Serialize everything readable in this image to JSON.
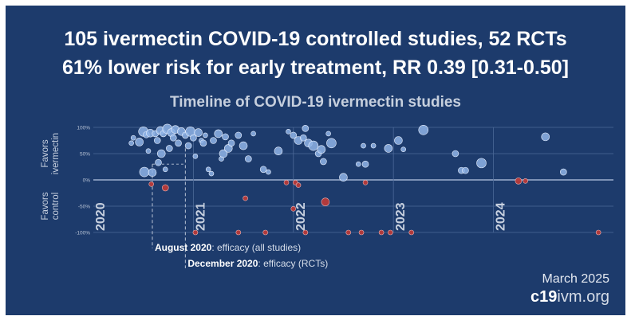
{
  "header": {
    "line1": "105 ivermectin COVID-19 controlled studies, 52 RCTs",
    "line2": "61% lower risk for early treatment, RR 0.39 [0.31-0.50]"
  },
  "footer": {
    "date": "March 2025",
    "site_bold": "c19",
    "site_rest": "ivm.org"
  },
  "chart_data": {
    "type": "scatter",
    "title": "Timeline of COVID-19 ivermectin studies",
    "ylabel_top": [
      "Favors",
      "ivermectin"
    ],
    "ylabel_bottom": [
      "Favors",
      "control"
    ],
    "ylim": [
      -100,
      100
    ],
    "y_ticks": [
      "100%",
      "50%",
      "0%",
      "-50%",
      "-100%"
    ],
    "xlim": [
      2020.0,
      2025.2
    ],
    "year_labels": [
      "2020",
      "2021",
      "2022",
      "2023",
      "2024"
    ],
    "annotations": [
      {
        "bold": "August 2020",
        "text": ": efficacy (all studies)",
        "x": 2020.59
      },
      {
        "bold": "December 2020",
        "text": ": efficacy (RCTs)",
        "x": 2020.92
      }
    ],
    "colors": {
      "favorable": "#8fb4e6",
      "unfavorable": "#b83a3a",
      "grid": "#4d6a98",
      "zero_line": "#9db0cf"
    },
    "series": [
      {
        "points": [
          {
            "x": 2020.38,
            "y": 70,
            "r": 3
          },
          {
            "x": 2020.4,
            "y": 80,
            "r": 3
          },
          {
            "x": 2020.46,
            "y": 72,
            "r": 5
          },
          {
            "x": 2020.5,
            "y": 92,
            "r": 6
          },
          {
            "x": 2020.53,
            "y": 86,
            "r": 4
          },
          {
            "x": 2020.55,
            "y": 55,
            "r": 3
          },
          {
            "x": 2020.51,
            "y": 15,
            "r": 6
          },
          {
            "x": 2020.57,
            "y": 89,
            "r": 5
          },
          {
            "x": 2020.59,
            "y": 14,
            "r": 5
          },
          {
            "x": 2020.62,
            "y": 88,
            "r": 4
          },
          {
            "x": 2020.64,
            "y": 75,
            "r": 4
          },
          {
            "x": 2020.65,
            "y": 33,
            "r": 4
          },
          {
            "x": 2020.67,
            "y": 94,
            "r": 5
          },
          {
            "x": 2020.68,
            "y": 50,
            "r": 5
          },
          {
            "x": 2020.7,
            "y": 88,
            "r": 4
          },
          {
            "x": 2020.72,
            "y": 20,
            "r": 3
          },
          {
            "x": 2020.74,
            "y": 97,
            "r": 6
          },
          {
            "x": 2020.76,
            "y": 60,
            "r": 4
          },
          {
            "x": 2020.78,
            "y": 90,
            "r": 5
          },
          {
            "x": 2020.8,
            "y": 80,
            "r": 4
          },
          {
            "x": 2020.82,
            "y": 96,
            "r": 5
          },
          {
            "x": 2020.85,
            "y": 70,
            "r": 4
          },
          {
            "x": 2020.88,
            "y": 92,
            "r": 5
          },
          {
            "x": 2020.92,
            "y": 85,
            "r": 4
          },
          {
            "x": 2020.95,
            "y": 65,
            "r": 4
          },
          {
            "x": 2020.97,
            "y": 92,
            "r": 6
          },
          {
            "x": 2021.0,
            "y": 80,
            "r": 4
          },
          {
            "x": 2021.02,
            "y": 45,
            "r": 3
          },
          {
            "x": 2021.05,
            "y": 90,
            "r": 5
          },
          {
            "x": 2021.08,
            "y": 75,
            "r": 3
          },
          {
            "x": 2021.1,
            "y": 70,
            "r": 4
          },
          {
            "x": 2021.12,
            "y": 85,
            "r": 3
          },
          {
            "x": 2021.15,
            "y": 20,
            "r": 3
          },
          {
            "x": 2021.18,
            "y": 12,
            "r": 3
          },
          {
            "x": 2021.2,
            "y": 75,
            "r": 4
          },
          {
            "x": 2021.25,
            "y": 88,
            "r": 5
          },
          {
            "x": 2021.28,
            "y": 40,
            "r": 3
          },
          {
            "x": 2021.3,
            "y": 50,
            "r": 5
          },
          {
            "x": 2021.32,
            "y": 82,
            "r": 4
          },
          {
            "x": 2021.35,
            "y": 60,
            "r": 5
          },
          {
            "x": 2021.38,
            "y": 70,
            "r": 4
          },
          {
            "x": 2021.45,
            "y": 85,
            "r": 4
          },
          {
            "x": 2021.5,
            "y": 65,
            "r": 5
          },
          {
            "x": 2021.55,
            "y": 40,
            "r": 4
          },
          {
            "x": 2021.6,
            "y": 88,
            "r": 3
          },
          {
            "x": 2021.7,
            "y": 20,
            "r": 4
          },
          {
            "x": 2021.75,
            "y": 15,
            "r": 3
          },
          {
            "x": 2021.85,
            "y": 55,
            "r": 5
          },
          {
            "x": 2021.95,
            "y": 92,
            "r": 3
          },
          {
            "x": 2022.0,
            "y": 85,
            "r": 4
          },
          {
            "x": 2022.05,
            "y": 75,
            "r": 5
          },
          {
            "x": 2022.1,
            "y": 80,
            "r": 4
          },
          {
            "x": 2022.12,
            "y": 98,
            "r": 4
          },
          {
            "x": 2022.15,
            "y": 70,
            "r": 5
          },
          {
            "x": 2022.2,
            "y": 65,
            "r": 6
          },
          {
            "x": 2022.25,
            "y": 50,
            "r": 4
          },
          {
            "x": 2022.28,
            "y": 58,
            "r": 5
          },
          {
            "x": 2022.3,
            "y": 35,
            "r": 4
          },
          {
            "x": 2022.35,
            "y": 88,
            "r": 3
          },
          {
            "x": 2022.38,
            "y": 70,
            "r": 6
          },
          {
            "x": 2022.5,
            "y": 5,
            "r": 5
          },
          {
            "x": 2022.65,
            "y": 30,
            "r": 3
          },
          {
            "x": 2022.7,
            "y": 65,
            "r": 3
          },
          {
            "x": 2022.72,
            "y": 30,
            "r": 4
          },
          {
            "x": 2022.8,
            "y": 65,
            "r": 3
          },
          {
            "x": 2022.95,
            "y": 60,
            "r": 5
          },
          {
            "x": 2023.05,
            "y": 75,
            "r": 5
          },
          {
            "x": 2023.1,
            "y": 58,
            "r": 3
          },
          {
            "x": 2023.3,
            "y": 95,
            "r": 6
          },
          {
            "x": 2023.62,
            "y": 50,
            "r": 4
          },
          {
            "x": 2023.68,
            "y": 18,
            "r": 4
          },
          {
            "x": 2023.72,
            "y": 18,
            "r": 4
          },
          {
            "x": 2023.88,
            "y": 32,
            "r": 6
          },
          {
            "x": 2024.52,
            "y": 82,
            "r": 5
          },
          {
            "x": 2024.7,
            "y": 15,
            "r": 4
          }
        ]
      },
      {
        "points": [
          {
            "x": 2020.58,
            "y": -8,
            "r": 3
          },
          {
            "x": 2020.72,
            "y": -15,
            "r": 4
          },
          {
            "x": 2021.02,
            "y": -100,
            "r": 3
          },
          {
            "x": 2021.45,
            "y": -100,
            "r": 3
          },
          {
            "x": 2021.52,
            "y": -35,
            "r": 3
          },
          {
            "x": 2021.72,
            "y": -100,
            "r": 3
          },
          {
            "x": 2021.93,
            "y": -5,
            "r": 3
          },
          {
            "x": 2022.02,
            "y": -5,
            "r": 3
          },
          {
            "x": 2022.0,
            "y": -55,
            "r": 3
          },
          {
            "x": 2022.05,
            "y": -10,
            "r": 3
          },
          {
            "x": 2022.12,
            "y": -100,
            "r": 3
          },
          {
            "x": 2022.32,
            "y": -42,
            "r": 5
          },
          {
            "x": 2022.55,
            "y": -100,
            "r": 3
          },
          {
            "x": 2022.68,
            "y": -100,
            "r": 3
          },
          {
            "x": 2022.72,
            "y": -5,
            "r": 3
          },
          {
            "x": 2022.88,
            "y": -100,
            "r": 3
          },
          {
            "x": 2022.97,
            "y": -100,
            "r": 3
          },
          {
            "x": 2023.18,
            "y": -100,
            "r": 3
          },
          {
            "x": 2024.25,
            "y": -2,
            "r": 4
          },
          {
            "x": 2024.32,
            "y": -2,
            "r": 3
          },
          {
            "x": 2025.05,
            "y": -100,
            "r": 3
          }
        ]
      }
    ]
  }
}
